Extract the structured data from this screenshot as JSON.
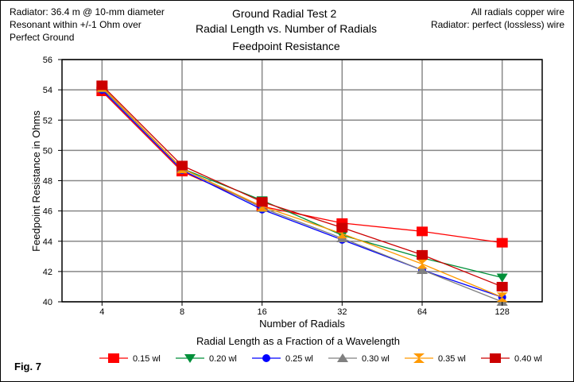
{
  "chart_data": {
    "type": "line",
    "title": [
      "Ground Radial Test 2",
      "Radial Length vs. Number of Radials",
      "Feedpoint Resistance"
    ],
    "notes_left": [
      "Radiator: 36.4 m @ 10-mm diameter",
      "Resonant within +/-1 Ohm over",
      "Perfect Ground"
    ],
    "notes_right": [
      "All radials copper wire",
      "Radiator: perfect (lossless) wire"
    ],
    "figure_label": "Fig. 7",
    "xlabel": "Number of Radials",
    "ylabel": "Feedpoint Resistance in Ohms",
    "legend_title": "Radial Length as a Fraction of a Wavelength",
    "legend_position": "bottom",
    "categories": [
      "4",
      "8",
      "16",
      "32",
      "64",
      "128"
    ],
    "ylim": [
      40,
      56
    ],
    "yticks": [
      "40",
      "42",
      "44",
      "46",
      "48",
      "50",
      "52",
      "54",
      "56"
    ],
    "grid": true,
    "series": [
      {
        "name": "0.15 wl",
        "color": "#ff0000",
        "marker": "square",
        "values": [
          53.9,
          48.6,
          46.3,
          45.2,
          44.65,
          43.9
        ]
      },
      {
        "name": "0.20 wl",
        "color": "#008f39",
        "marker": "triangle-down",
        "values": [
          54.2,
          48.8,
          46.7,
          44.4,
          42.9,
          41.6
        ]
      },
      {
        "name": "0.25 wl",
        "color": "#0000ff",
        "marker": "circle",
        "values": [
          54.0,
          48.7,
          46.1,
          44.1,
          42.1,
          40.3
        ]
      },
      {
        "name": "0.30 wl",
        "color": "#808080",
        "marker": "triangle-up",
        "values": [
          54.1,
          48.8,
          46.2,
          44.2,
          42.1,
          40.0
        ]
      },
      {
        "name": "0.35 wl",
        "color": "#ff9900",
        "marker": "hourglass",
        "values": [
          54.2,
          48.8,
          46.3,
          44.5,
          42.5,
          40.3
        ]
      },
      {
        "name": "0.40 wl",
        "color": "#cc0000",
        "marker": "square",
        "values": [
          54.3,
          49.0,
          46.6,
          44.9,
          43.1,
          41.0
        ]
      }
    ]
  }
}
